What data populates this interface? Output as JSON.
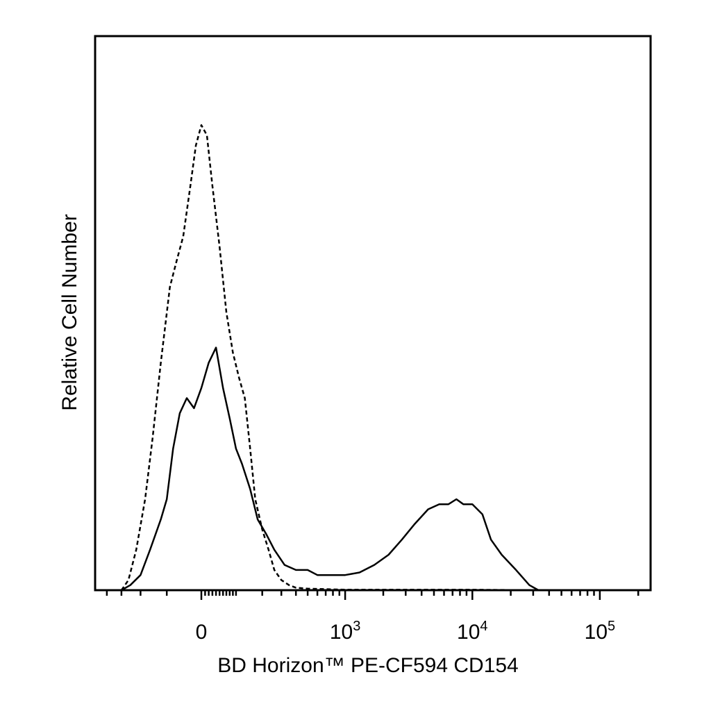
{
  "chart_data": {
    "type": "line",
    "title": "",
    "xlabel": "BD Horizon™ PE-CF594 CD154",
    "ylabel": "Relative Cell Number",
    "x_scale": "logicle",
    "xlim": [
      -500,
      250000
    ],
    "ylim": [
      0,
      100
    ],
    "grid": false,
    "legend": "none",
    "x_tick_labels": [
      {
        "value": 0,
        "base": "0",
        "exp": ""
      },
      {
        "value": 1000,
        "base": "10",
        "exp": "3"
      },
      {
        "value": 10000,
        "base": "10",
        "exp": "4"
      },
      {
        "value": 100000,
        "base": "10",
        "exp": "5"
      }
    ],
    "series": [
      {
        "style": "dashed",
        "color": "#000000",
        "x": [
          -300,
          -260,
          -220,
          -180,
          -150,
          -120,
          -90,
          -70,
          -50,
          -30,
          -15,
          0,
          15,
          30,
          50,
          70,
          90,
          110,
          130,
          150,
          170,
          200,
          230,
          260,
          300,
          350,
          400,
          500,
          700,
          1000,
          2000,
          5000,
          10000,
          30000,
          250000
        ],
        "y": [
          0,
          2,
          8,
          18,
          30,
          45,
          60,
          65,
          70,
          80,
          88,
          92,
          90,
          80,
          68,
          55,
          47,
          42,
          38,
          28,
          18,
          12,
          8,
          4,
          2,
          1,
          0.5,
          0.3,
          0.2,
          0.1,
          0.1,
          0.1,
          0.1,
          0,
          0
        ]
      },
      {
        "style": "solid",
        "color": "#000000",
        "x": [
          -300,
          -250,
          -200,
          -160,
          -120,
          -100,
          -80,
          -60,
          -40,
          -20,
          0,
          20,
          40,
          60,
          80,
          100,
          120,
          150,
          180,
          220,
          260,
          320,
          400,
          500,
          600,
          800,
          1000,
          1300,
          1700,
          2200,
          2800,
          3500,
          4500,
          5500,
          6500,
          7500,
          8500,
          10000,
          12000,
          14000,
          17000,
          22000,
          28000,
          33000,
          250000
        ],
        "y": [
          0,
          1,
          3,
          8,
          14,
          18,
          28,
          35,
          38,
          36,
          40,
          45,
          48,
          40,
          34,
          28,
          25,
          20,
          14,
          11,
          8,
          5,
          4,
          4,
          3,
          3,
          3,
          3.5,
          5,
          7,
          10,
          13,
          16,
          17,
          17,
          18,
          17,
          17,
          15,
          10,
          7,
          4,
          1,
          0,
          0
        ]
      }
    ]
  }
}
